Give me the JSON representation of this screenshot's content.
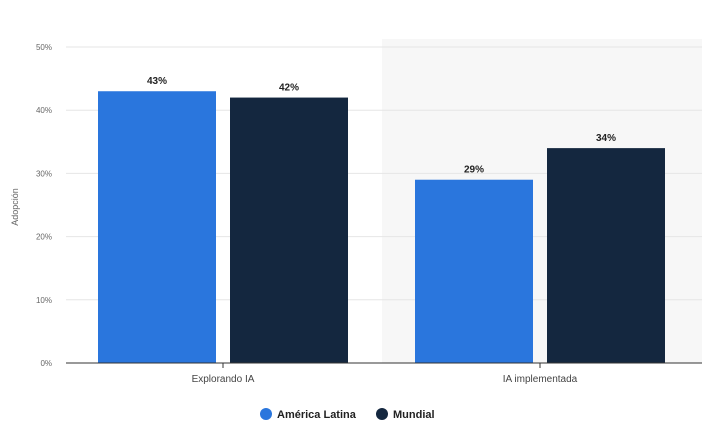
{
  "chart_data": {
    "type": "bar",
    "categories": [
      "Explorando IA",
      "IA implementada"
    ],
    "series": [
      {
        "name": "América Latina",
        "values": [
          43,
          29
        ],
        "color": "#2a76dd"
      },
      {
        "name": "Mundial",
        "values": [
          42,
          34
        ],
        "color": "#14273f"
      }
    ],
    "ylabel": "Adopción",
    "xlabel": "",
    "ylim": [
      0,
      50
    ],
    "yticks": [
      0,
      10,
      20,
      30,
      40,
      50
    ],
    "tick_suffix": "%",
    "value_suffix": "%",
    "grid": true,
    "legend_position": "bottom-center",
    "highlight_category": "IA implementada",
    "highlight_color": "#f7f7f7"
  }
}
